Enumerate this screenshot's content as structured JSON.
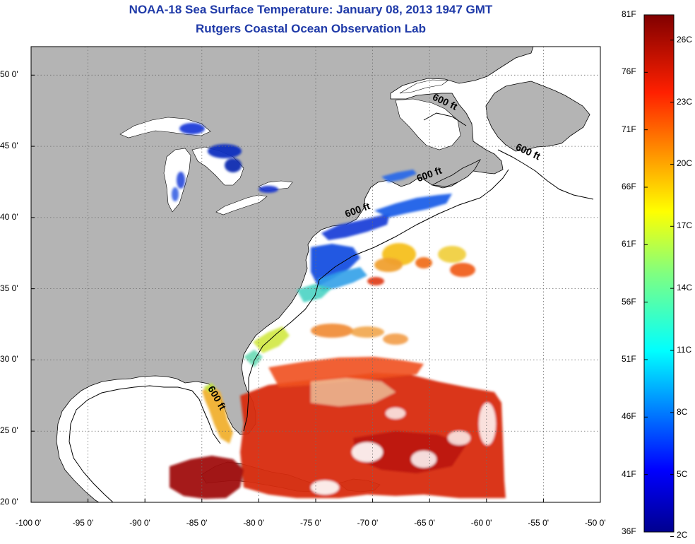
{
  "header": {
    "title": "NOAA-18 Sea Surface Temperature:  January 08, 2013 1947 GMT",
    "subtitle": "Rutgers Coastal Ocean Observation Lab"
  },
  "map": {
    "lon_range": [
      -100,
      -50
    ],
    "lat_range": [
      20,
      52
    ],
    "x_ticks": [
      "-100 0'",
      "-95 0'",
      "-90 0'",
      "-85 0'",
      "-80 0'",
      "-75 0'",
      "-70 0'",
      "-65 0'",
      "-60 0'",
      "-55 0'",
      "-50 0'"
    ],
    "y_ticks": [
      "50 0'",
      "45 0'",
      "40 0'",
      "35 0'",
      "30 0'",
      "25 0'",
      "20 0'"
    ],
    "depth_labels": [
      {
        "text": "600 ft",
        "lon": -64.8,
        "lat": 48.3
      },
      {
        "text": "600 ft",
        "lon": -57.5,
        "lat": 44.8
      },
      {
        "text": "600 ft",
        "lon": -66.0,
        "lat": 42.5
      },
      {
        "text": "600 ft",
        "lon": -72.3,
        "lat": 40.0
      },
      {
        "text": "600 ft",
        "lon": -84.5,
        "lat": 28.0
      }
    ],
    "colors": {
      "land": "#b4b4b4",
      "ocean": "#ffffff",
      "grid": "#6e6e6e"
    }
  },
  "colorbar": {
    "left_labels": [
      "81F",
      "76F",
      "71F",
      "66F",
      "61F",
      "56F",
      "51F",
      "46F",
      "41F",
      "36F"
    ],
    "right_labels": [
      "26C",
      "23C",
      "20C",
      "17C",
      "14C",
      "11C",
      "8C",
      "5C",
      "2C"
    ],
    "colormap": "jet",
    "range_f": [
      36,
      81
    ]
  }
}
